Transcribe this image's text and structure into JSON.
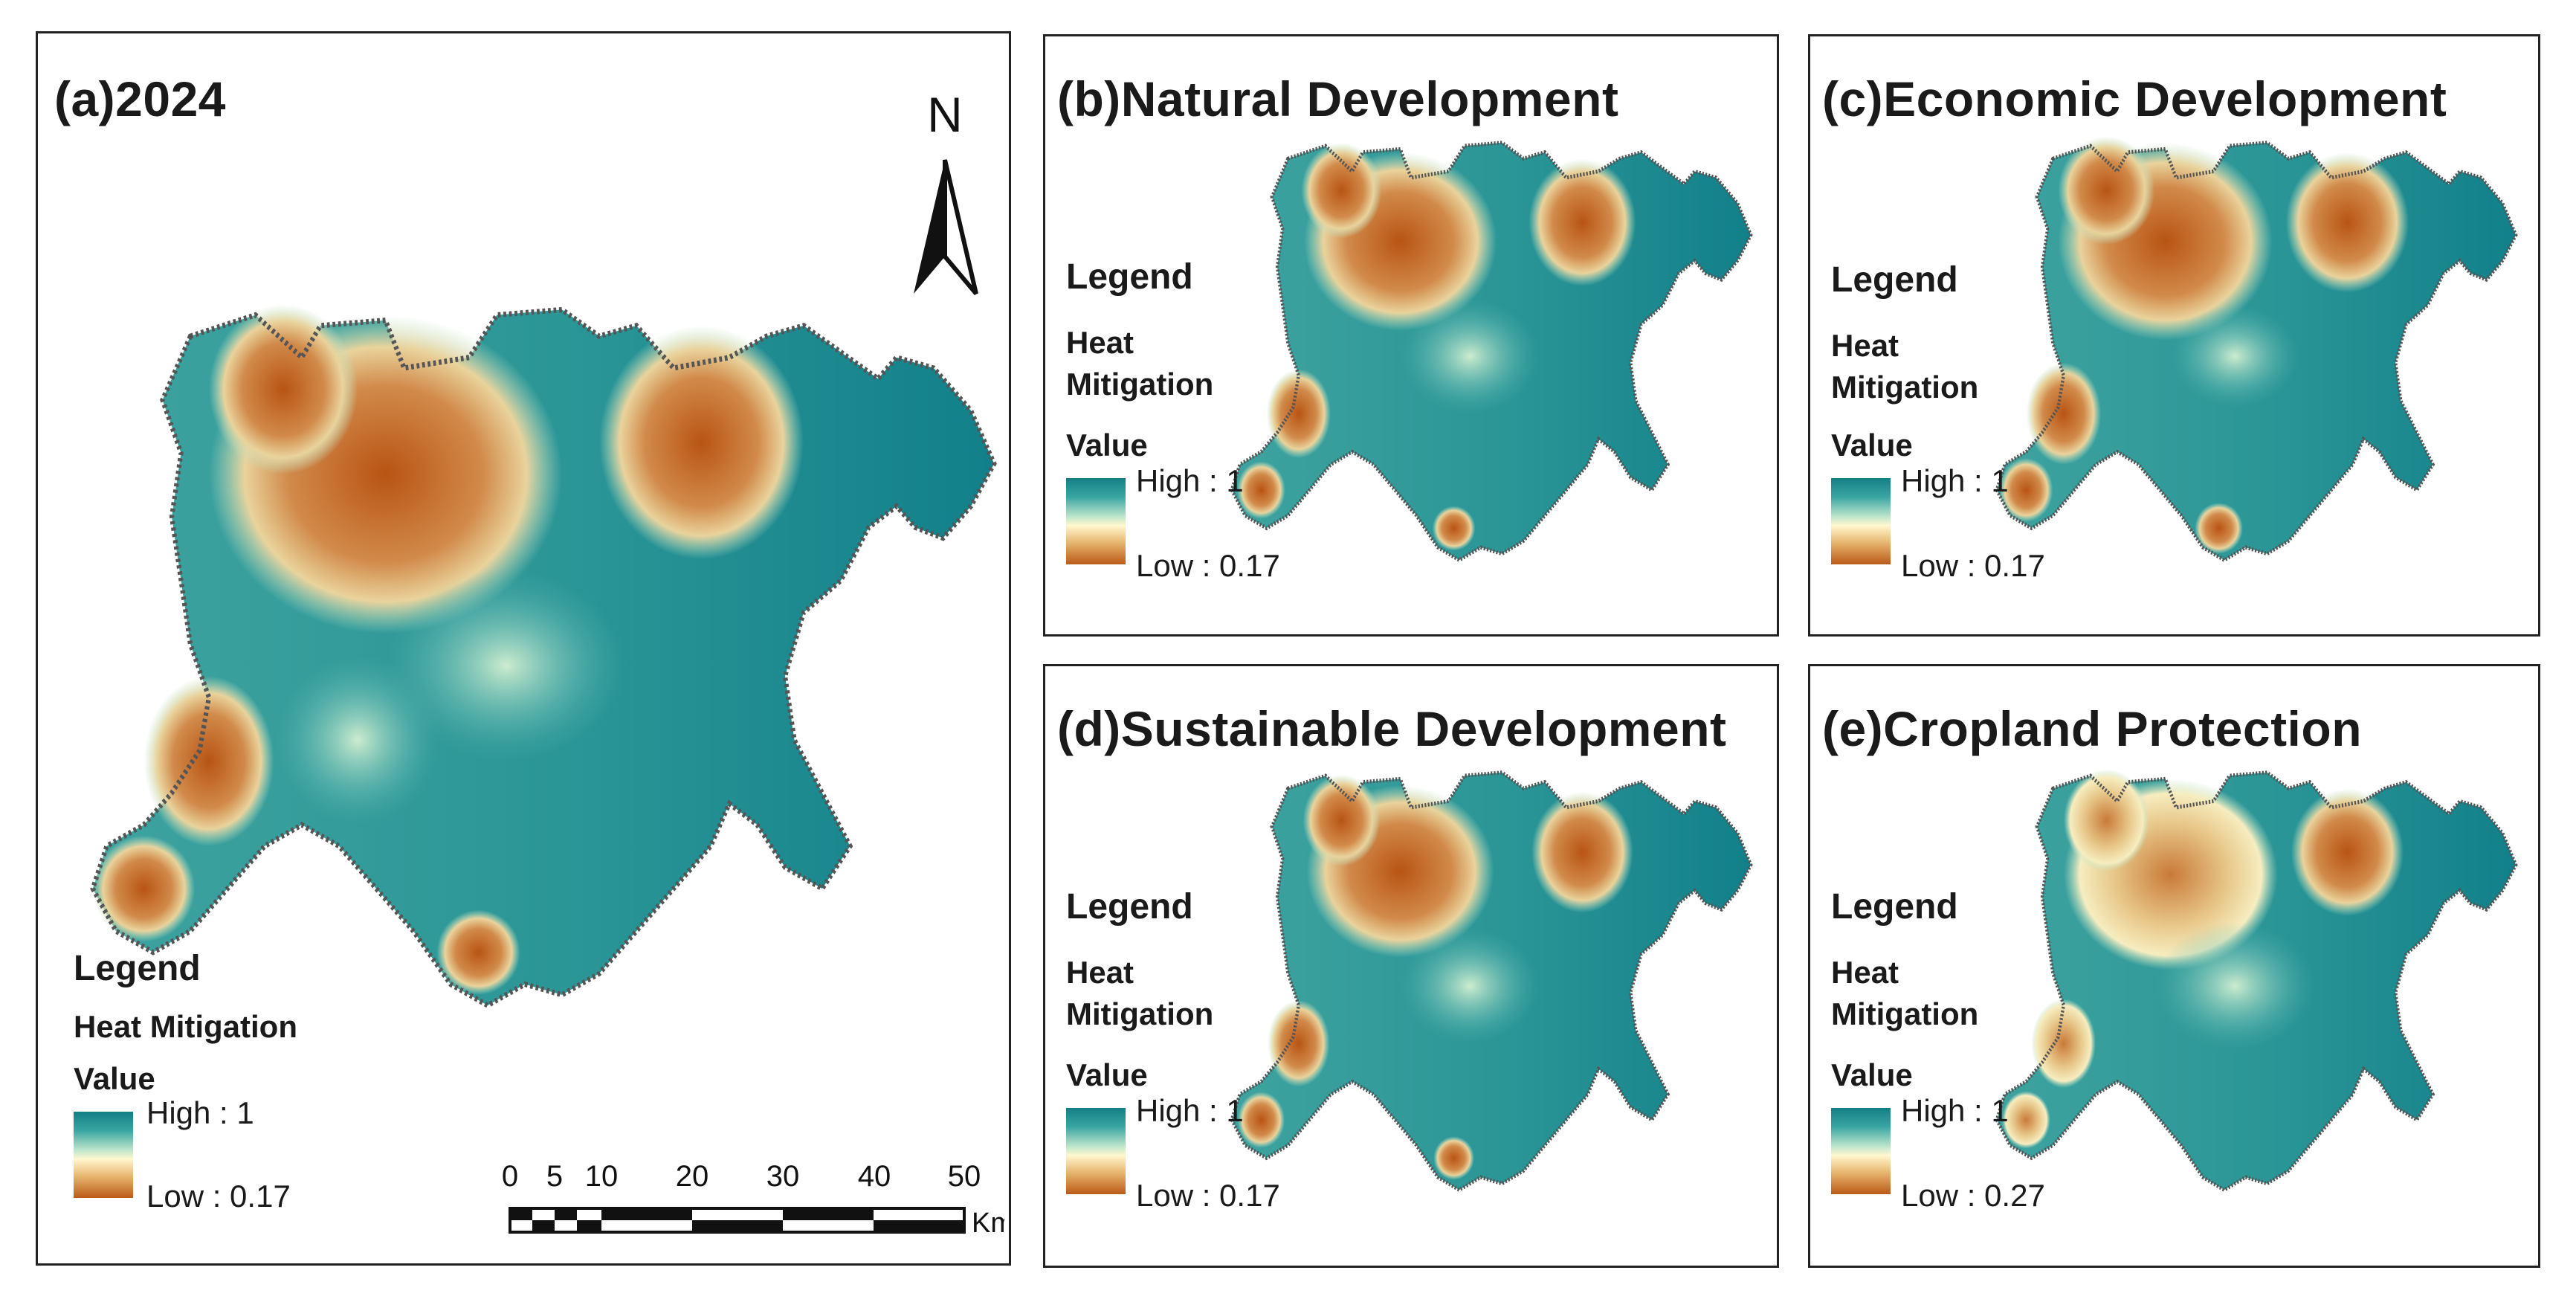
{
  "colors": {
    "high": "#137f86",
    "mid": "#fff7cf",
    "low": "#bb5a18",
    "boundary": "#555555"
  },
  "legend": {
    "title": "Legend",
    "field": "Heat Mitigation",
    "field_line1": "Heat",
    "field_line2": "Mitigation",
    "value_label": "Value",
    "high_label": "High : 1"
  },
  "north_label": "N",
  "scale": {
    "ticks": [
      "0",
      "5",
      "10",
      "20",
      "30",
      "40",
      "50"
    ],
    "unit": "Km"
  },
  "panels": [
    {
      "id": "a",
      "title": "(a)2024",
      "low_label": "Low : 0.17"
    },
    {
      "id": "b",
      "title": "(b)Natural Development",
      "low_label": "Low : 0.17"
    },
    {
      "id": "c",
      "title": "(c)Economic Development",
      "low_label": "Low : 0.17"
    },
    {
      "id": "d",
      "title": "(d)Sustainable Development",
      "low_label": "Low : 0.17"
    },
    {
      "id": "e",
      "title": "(e)Cropland Protection",
      "low_label": "Low : 0.27"
    }
  ]
}
